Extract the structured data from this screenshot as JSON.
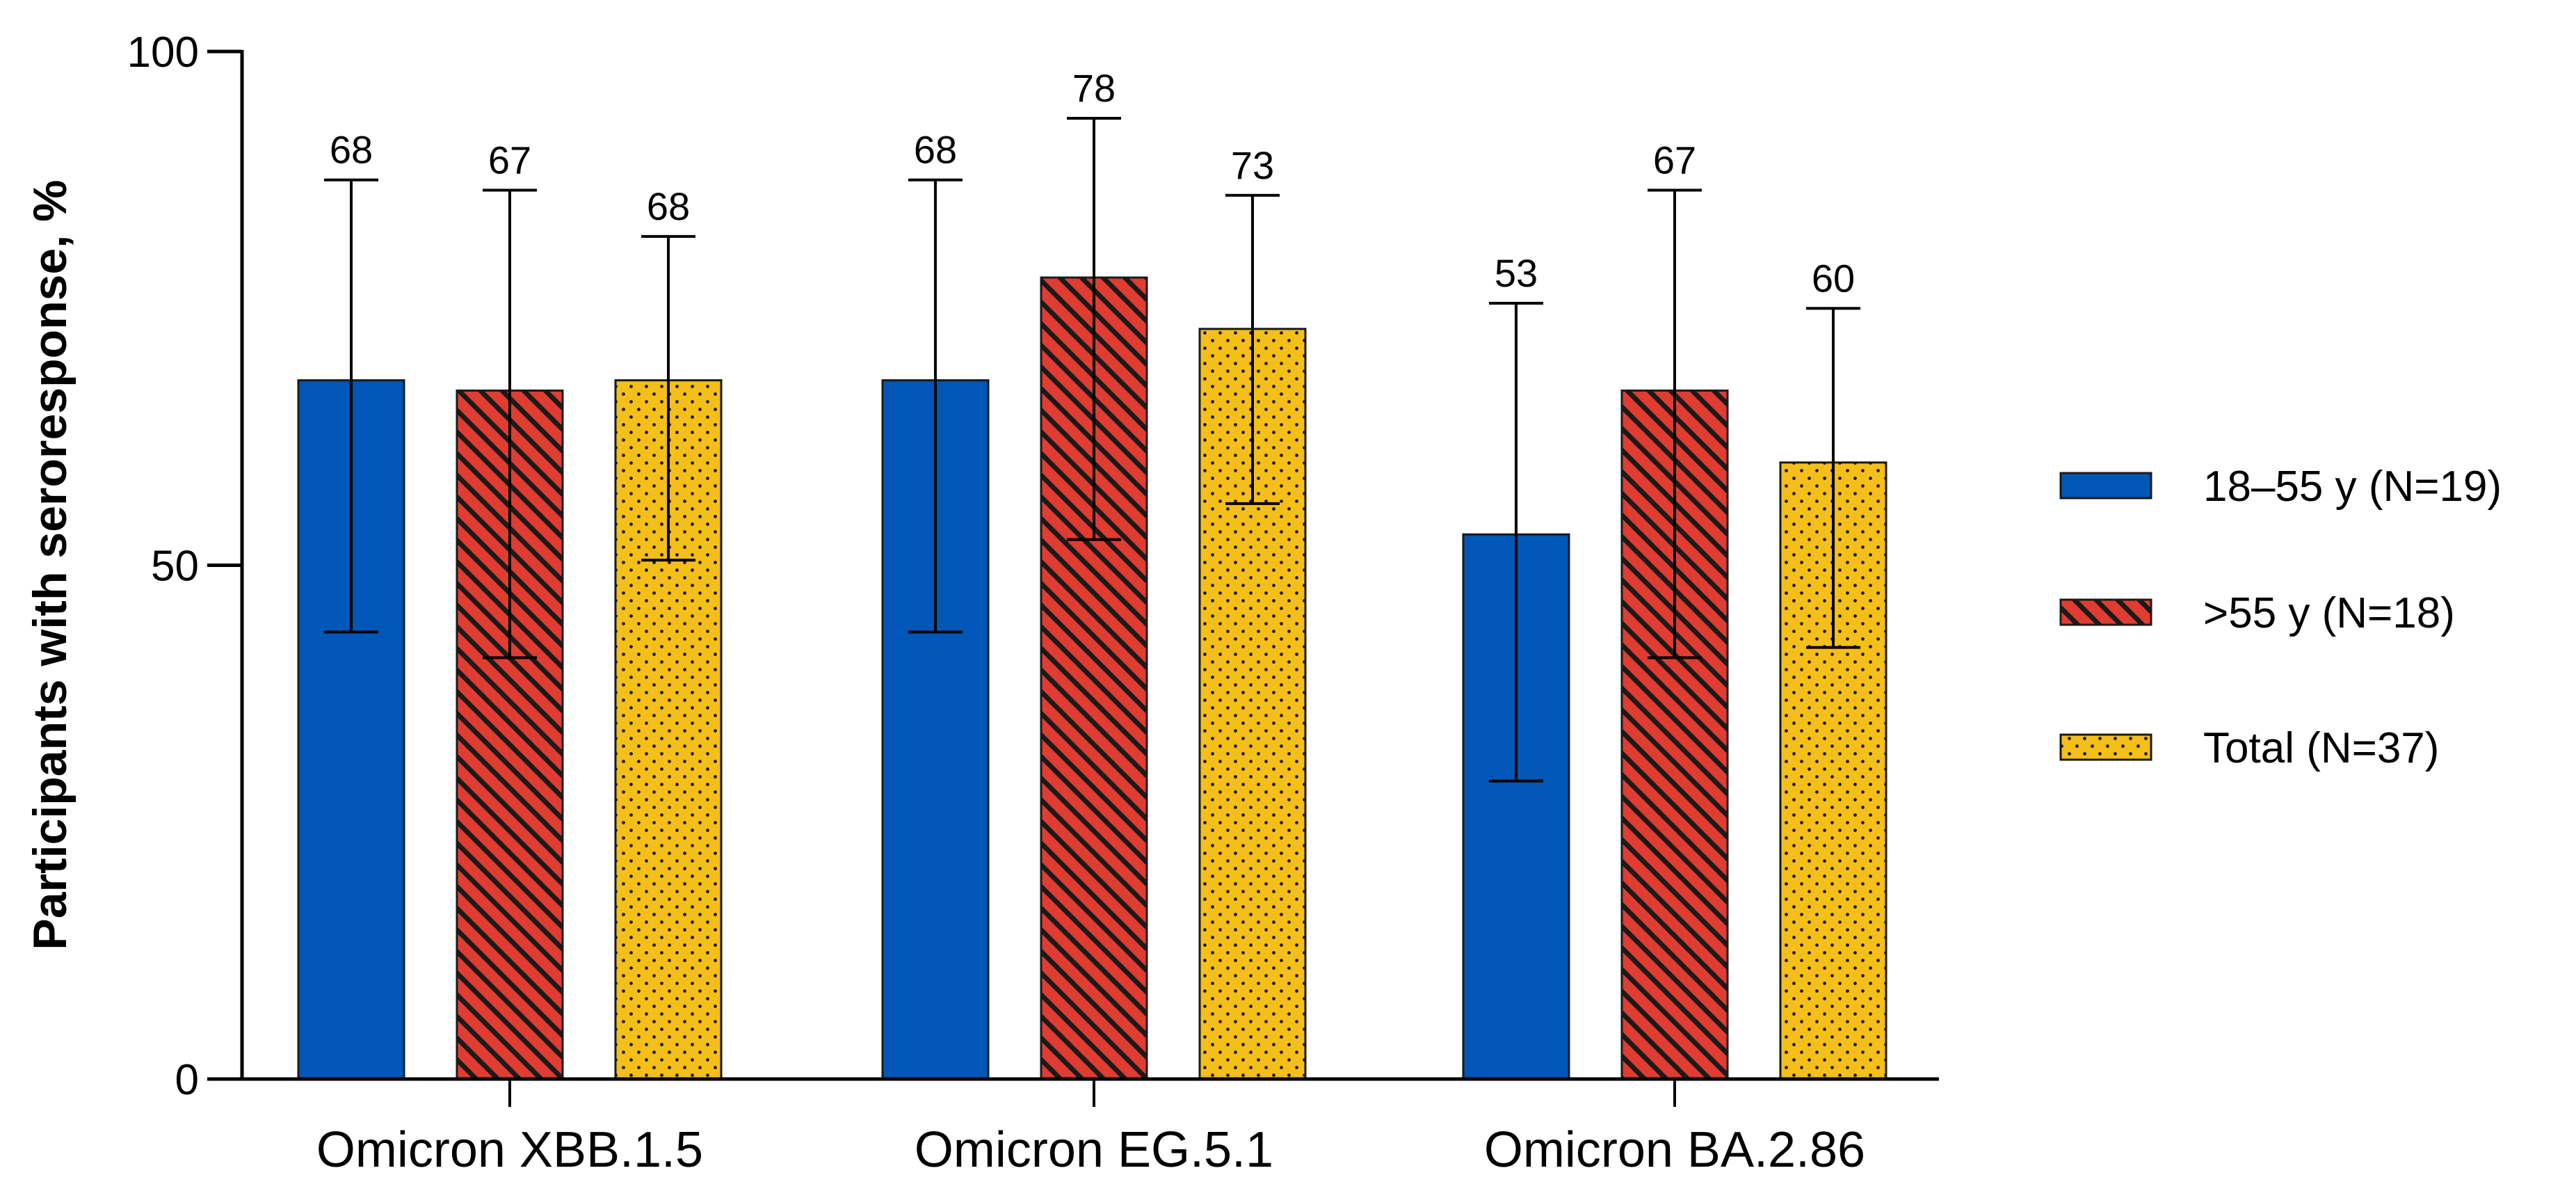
{
  "chart_data": {
    "type": "bar",
    "ylabel": "Participants with seroresponse, %",
    "xlabel": "",
    "ylim": [
      0,
      100
    ],
    "yticks": [
      0,
      50,
      100
    ],
    "categories": [
      "Omicron XBB.1.5",
      "Omicron EG.5.1",
      "Omicron BA.2.86"
    ],
    "series": [
      {
        "name": "18–55 y (N=19)",
        "color": "#0057b8",
        "pattern": "solid",
        "values": [
          68,
          68,
          53
        ],
        "ci_low": [
          43.5,
          43.5,
          29
        ],
        "ci_high": [
          87.5,
          87.5,
          75.5
        ],
        "labels": [
          "68",
          "68",
          "53"
        ]
      },
      {
        "name": ">55 y (N=18)",
        "color": "#e03c31",
        "pattern": "diagonal-hatch",
        "values": [
          67,
          78,
          67
        ],
        "ci_low": [
          41,
          52.5,
          41
        ],
        "ci_high": [
          86.5,
          93.5,
          86.5
        ],
        "labels": [
          "67",
          "78",
          "67"
        ]
      },
      {
        "name": "Total (N=37)",
        "color": "#f5bf1a",
        "pattern": "dots",
        "values": [
          68,
          73,
          60
        ],
        "ci_low": [
          50.5,
          56,
          42
        ],
        "ci_high": [
          82,
          86,
          75
        ],
        "labels": [
          "68",
          "73",
          "60"
        ]
      }
    ],
    "legend": "right",
    "grid": false
  }
}
